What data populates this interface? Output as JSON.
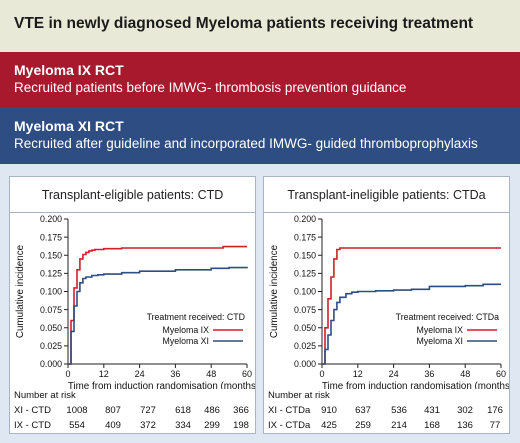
{
  "header": {
    "title": "VTE in newly diagnosed Myeloma patients receiving treatment",
    "ix_heading": "Myeloma IX RCT",
    "ix_text": "Recruited patients before IMWG- thrombosis prevention guidance",
    "xi_heading": "Myeloma XI RCT",
    "xi_text": "Recruited after guideline and incorporated IMWG- guided thromboprophylaxis"
  },
  "colors": {
    "ix": "#d11f2b",
    "xi": "#2e4d83",
    "ix_banner": "#a8192e",
    "xi_banner": "#2e4d83"
  },
  "chart_data": [
    {
      "type": "line",
      "title": "Transplant-eligible patients: CTD",
      "xlabel": "Time from induction randomisation (months)",
      "ylabel": "Cumulative incidence",
      "xlim": [
        0,
        60
      ],
      "ylim": [
        0,
        0.2
      ],
      "x_ticks": [
        "0",
        "12",
        "24",
        "36",
        "48",
        "60"
      ],
      "y_ticks": [
        "0.000",
        "0.025",
        "0.050",
        "0.075",
        "0.100",
        "0.125",
        "0.150",
        "0.175",
        "0.200"
      ],
      "legend_title": "Treatment received: CTD",
      "series": [
        {
          "name": "Myeloma IX",
          "color": "#d11f2b",
          "x": [
            0,
            1,
            2,
            3,
            4,
            5,
            6,
            7,
            8,
            9,
            12,
            14,
            18,
            24,
            36,
            48,
            52,
            60
          ],
          "y": [
            0,
            0.06,
            0.105,
            0.13,
            0.145,
            0.151,
            0.154,
            0.156,
            0.157,
            0.158,
            0.159,
            0.159,
            0.16,
            0.16,
            0.16,
            0.16,
            0.162,
            0.162
          ]
        },
        {
          "name": "Myeloma XI",
          "color": "#2e4d83",
          "x": [
            0,
            1,
            2,
            3,
            4,
            5,
            6,
            8,
            10,
            12,
            18,
            24,
            36,
            48,
            54,
            60
          ],
          "y": [
            0,
            0.045,
            0.08,
            0.1,
            0.112,
            0.118,
            0.12,
            0.122,
            0.123,
            0.124,
            0.126,
            0.128,
            0.13,
            0.132,
            0.133,
            0.134
          ]
        }
      ],
      "risk_table": {
        "label": "Number at risk",
        "rows": [
          {
            "label": "XI - CTD",
            "values": [
              "1008",
              "807",
              "727",
              "618",
              "486",
              "366"
            ]
          },
          {
            "label": "IX - CTD",
            "values": [
              "554",
              "409",
              "372",
              "334",
              "299",
              "198"
            ]
          }
        ]
      }
    },
    {
      "type": "line",
      "title": "Transplant-ineligible patients: CTDa",
      "xlabel": "Time from induction randomisation (months)",
      "ylabel": "Cumulative incidence",
      "xlim": [
        0,
        60
      ],
      "ylim": [
        0,
        0.2
      ],
      "x_ticks": [
        "0",
        "12",
        "24",
        "36",
        "48",
        "60"
      ],
      "y_ticks": [
        "0.000",
        "0.025",
        "0.050",
        "0.075",
        "0.100",
        "0.125",
        "0.150",
        "0.175",
        "0.200"
      ],
      "legend_title": "Treatment received: CTDa",
      "series": [
        {
          "name": "Myeloma IX",
          "color": "#d11f2b",
          "x": [
            0,
            1,
            2,
            3,
            4,
            5,
            6,
            60
          ],
          "y": [
            0,
            0.05,
            0.09,
            0.12,
            0.145,
            0.158,
            0.16,
            0.16
          ]
        },
        {
          "name": "Myeloma XI",
          "color": "#2e4d83",
          "x": [
            0,
            1,
            2,
            3,
            4,
            5,
            6,
            8,
            10,
            12,
            18,
            24,
            30,
            36,
            48,
            54,
            60
          ],
          "y": [
            0,
            0.02,
            0.04,
            0.06,
            0.075,
            0.085,
            0.092,
            0.097,
            0.099,
            0.1,
            0.101,
            0.102,
            0.103,
            0.107,
            0.108,
            0.11,
            0.11
          ]
        }
      ],
      "risk_table": {
        "label": "Number at risk",
        "rows": [
          {
            "label": "XI - CTDa",
            "values": [
              "910",
              "637",
              "536",
              "431",
              "302",
              "176"
            ]
          },
          {
            "label": "IX - CTDa",
            "values": [
              "425",
              "259",
              "214",
              "168",
              "136",
              "77"
            ]
          }
        ]
      }
    }
  ]
}
